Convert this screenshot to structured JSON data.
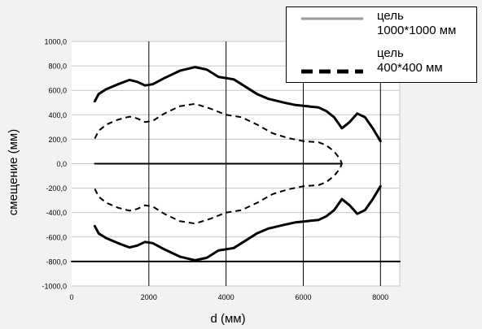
{
  "chart_data": {
    "type": "line",
    "xlabel": "d (мм)",
    "ylabel": "смещение (мм)",
    "xlim": [
      0,
      8500
    ],
    "ylim": [
      -1000,
      1000
    ],
    "x_ticks": [
      "0",
      "2000",
      "4000",
      "6000",
      "8000"
    ],
    "y_ticks": [
      "1000,0",
      "800,0",
      "600,0",
      "400,0",
      "200,0",
      "0,0",
      "-200,0",
      "-400,0",
      "-600,0",
      "-800,0",
      "-1000,0"
    ],
    "grid": true,
    "legend_position": "top-right",
    "legend": [
      {
        "label": "цель\n1000*1000 мм",
        "style": "solid",
        "color": "#9a9a9a"
      },
      {
        "label": "цель\n400*400 мм",
        "style": "dashed",
        "color": "#000000"
      }
    ],
    "series": [
      {
        "name": "цель 1000*1000 мм",
        "style": "solid",
        "x": [
          600,
          700,
          900,
          1200,
          1500,
          1700,
          1900,
          2100,
          2400,
          2800,
          3200,
          3500,
          3800,
          4200,
          4500,
          4800,
          5100,
          5500,
          5800,
          6100,
          6400,
          6600,
          6800,
          7000,
          7200,
          7400,
          7600,
          7800,
          8000
        ],
        "y": [
          510,
          570,
          610,
          650,
          685,
          670,
          640,
          650,
          700,
          760,
          790,
          770,
          710,
          690,
          630,
          570,
          530,
          500,
          480,
          470,
          460,
          430,
          380,
          290,
          340,
          410,
          380,
          290,
          185
        ]
      },
      {
        "name": "",
        "style": "solid",
        "x": [
          600,
          700,
          900,
          1200,
          1500,
          1700,
          1900,
          2100,
          2400,
          2800,
          3200,
          3500,
          3800,
          4200,
          4500,
          4800,
          5100,
          5500,
          5800,
          6100,
          6400,
          6600,
          6800,
          7000,
          7200,
          7400,
          7600,
          7800,
          8000
        ],
        "y": [
          -510,
          -570,
          -610,
          -650,
          -685,
          -670,
          -640,
          -650,
          -700,
          -760,
          -790,
          -770,
          -710,
          -690,
          -630,
          -570,
          -530,
          -500,
          -480,
          -470,
          -460,
          -430,
          -380,
          -290,
          -340,
          -410,
          -380,
          -290,
          -185
        ]
      },
      {
        "name": "цель 400*400 мм",
        "style": "dashed",
        "x": [
          600,
          700,
          900,
          1200,
          1500,
          1700,
          1900,
          2100,
          2400,
          2800,
          3200,
          3600,
          4000,
          4400,
          4800,
          5200,
          5600,
          6000,
          6400,
          6600,
          6800,
          6950,
          7000
        ],
        "y": [
          205,
          270,
          320,
          360,
          385,
          370,
          340,
          350,
          410,
          470,
          490,
          450,
          400,
          380,
          320,
          250,
          210,
          185,
          175,
          150,
          100,
          40,
          0
        ]
      },
      {
        "name": "",
        "style": "dashed",
        "x": [
          600,
          700,
          900,
          1200,
          1500,
          1700,
          1900,
          2100,
          2400,
          2800,
          3200,
          3600,
          4000,
          4400,
          4800,
          5200,
          5600,
          6000,
          6400,
          6600,
          6800,
          6950,
          7000
        ],
        "y": [
          -205,
          -270,
          -320,
          -360,
          -385,
          -370,
          -340,
          -350,
          -410,
          -470,
          -490,
          -450,
          -400,
          -380,
          -320,
          -250,
          -210,
          -185,
          -175,
          -150,
          -100,
          -40,
          0
        ]
      },
      {
        "name": "",
        "style": "solid",
        "x": [
          600,
          7000
        ],
        "y": [
          0,
          0
        ]
      },
      {
        "name": "",
        "style": "solid",
        "x": [
          0,
          8500
        ],
        "y": [
          -800,
          -800
        ]
      }
    ]
  }
}
